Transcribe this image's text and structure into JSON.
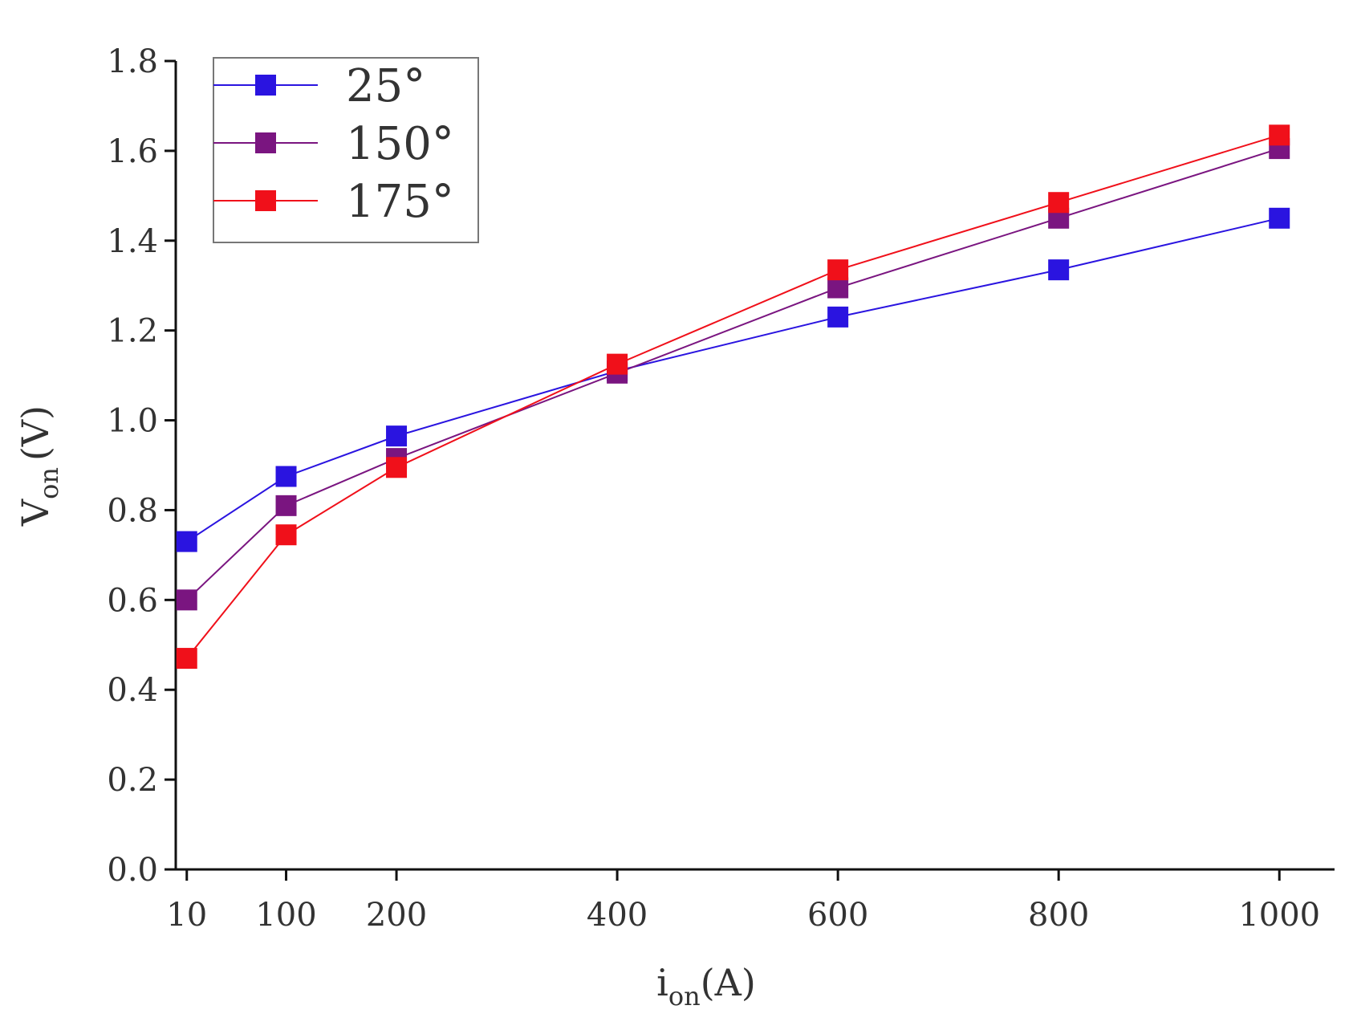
{
  "chart_data": {
    "type": "line",
    "x_label": {
      "main": "i",
      "sub": "on",
      "unit": "(A)"
    },
    "y_label": {
      "main": "V",
      "sub": "on",
      "unit": "(V)"
    },
    "x": [
      10,
      100,
      200,
      400,
      600,
      800,
      1000
    ],
    "xlim": [
      0,
      1050
    ],
    "xticks": [
      10,
      100,
      200,
      400,
      600,
      800,
      1000
    ],
    "ylim": [
      0,
      1.8
    ],
    "yticks": [
      {
        "value": 0,
        "label": "0.0"
      },
      0.2,
      0.4,
      0.6,
      0.8,
      {
        "value": 1,
        "label": "1.0"
      },
      1.2,
      1.4,
      1.6,
      1.8
    ],
    "legend": "upper left",
    "series": [
      {
        "name": "25°",
        "color": "#2a14e0",
        "values": [
          0.73,
          0.875,
          0.965,
          1.11,
          1.23,
          1.335,
          1.45
        ]
      },
      {
        "name": "150°",
        "color": "#7a1580",
        "values": [
          0.6,
          0.81,
          0.915,
          1.105,
          1.295,
          1.45,
          1.605
        ]
      },
      {
        "name": "175°",
        "color": "#f0101a",
        "values": [
          0.47,
          0.745,
          0.895,
          1.125,
          1.335,
          1.485,
          1.635
        ]
      }
    ]
  }
}
